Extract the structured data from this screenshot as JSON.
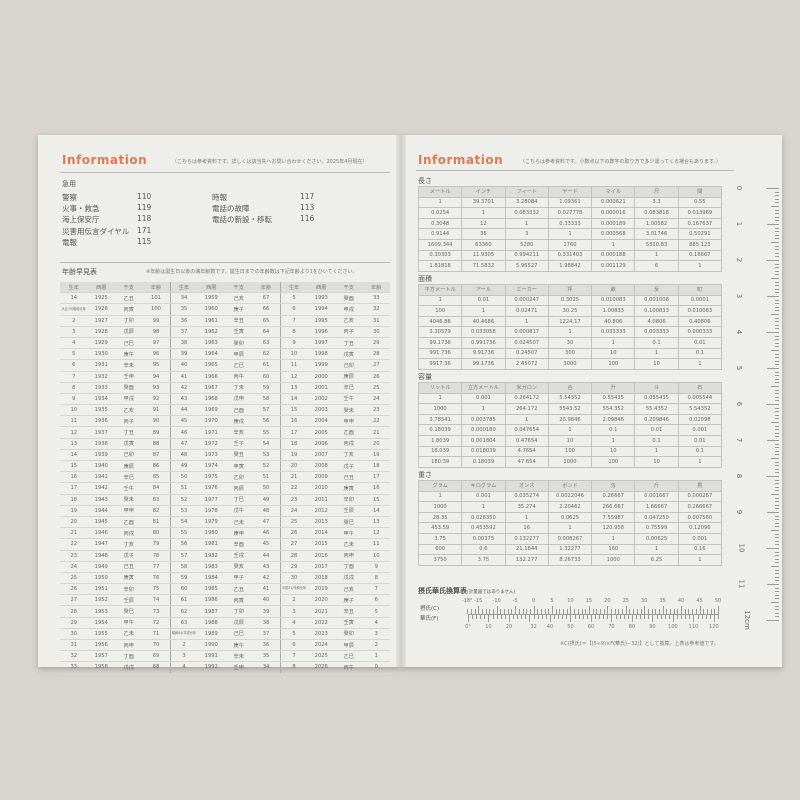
{
  "left_page": {
    "title": "Information",
    "note": "（こちらは参考資料です。詳しくは該当先へお問い合わせください。2025年4月現在）",
    "emergency": {
      "heading": "急用",
      "items": [
        {
          "label": "警察",
          "number": "110"
        },
        {
          "label": "火事・救急",
          "number": "119"
        },
        {
          "label": "海上保安庁",
          "number": "118"
        },
        {
          "label": "災害用伝言ダイヤル",
          "number": "171"
        },
        {
          "label": "電報",
          "number": "115"
        },
        {
          "label": "時報",
          "number": "117"
        },
        {
          "label": "電話の故障",
          "number": "113"
        },
        {
          "label": "電話の新設・移転",
          "number": "116"
        }
      ]
    },
    "age_table": {
      "heading": "年齢早見表",
      "note": "※年齢は誕生日以後の満年齢数です。誕生日までの年齢数は下記年齢より1をひいてください。",
      "headers": [
        "生年",
        "西暦",
        "干支",
        "年齢"
      ],
      "columns": [
        [
          [
            "14",
            "1925",
            "乙丑",
            "101"
          ],
          [
            "大正15/昭和元年",
            "1926",
            "丙寅",
            "100"
          ],
          [
            "2",
            "1927",
            "丁卯",
            "99"
          ],
          [
            "3",
            "1928",
            "戊辰",
            "98"
          ],
          [
            "4",
            "1929",
            "己巳",
            "97"
          ],
          [
            "5",
            "1930",
            "庚午",
            "96"
          ],
          [
            "6",
            "1931",
            "辛未",
            "95"
          ],
          [
            "7",
            "1932",
            "壬申",
            "94"
          ],
          [
            "8",
            "1933",
            "癸酉",
            "93"
          ],
          [
            "9",
            "1934",
            "甲戌",
            "92"
          ],
          [
            "10",
            "1935",
            "乙亥",
            "91"
          ],
          [
            "11",
            "1936",
            "丙子",
            "90"
          ],
          [
            "12",
            "1937",
            "丁丑",
            "89"
          ],
          [
            "13",
            "1938",
            "戊寅",
            "88"
          ],
          [
            "14",
            "1939",
            "己卯",
            "87"
          ],
          [
            "15",
            "1940",
            "庚辰",
            "86"
          ],
          [
            "16",
            "1941",
            "辛巳",
            "85"
          ],
          [
            "17",
            "1942",
            "壬午",
            "84"
          ],
          [
            "18",
            "1943",
            "癸未",
            "83"
          ],
          [
            "19",
            "1944",
            "甲申",
            "82"
          ],
          [
            "20",
            "1945",
            "乙酉",
            "81"
          ],
          [
            "21",
            "1946",
            "丙戌",
            "80"
          ],
          [
            "22",
            "1947",
            "丁亥",
            "79"
          ],
          [
            "23",
            "1948",
            "戊子",
            "78"
          ],
          [
            "24",
            "1949",
            "己丑",
            "77"
          ],
          [
            "25",
            "1950",
            "庚寅",
            "76"
          ],
          [
            "26",
            "1951",
            "辛卯",
            "75"
          ],
          [
            "27",
            "1952",
            "壬辰",
            "74"
          ],
          [
            "28",
            "1953",
            "癸巳",
            "73"
          ],
          [
            "29",
            "1954",
            "甲午",
            "72"
          ],
          [
            "30",
            "1955",
            "乙未",
            "71"
          ],
          [
            "31",
            "1956",
            "丙申",
            "70"
          ],
          [
            "32",
            "1957",
            "丁酉",
            "69"
          ],
          [
            "33",
            "1958",
            "戊戌",
            "68"
          ]
        ],
        [
          [
            "34",
            "1959",
            "己亥",
            "67"
          ],
          [
            "35",
            "1960",
            "庚子",
            "66"
          ],
          [
            "36",
            "1961",
            "辛丑",
            "65"
          ],
          [
            "37",
            "1962",
            "壬寅",
            "64"
          ],
          [
            "38",
            "1963",
            "癸卯",
            "63"
          ],
          [
            "39",
            "1964",
            "甲辰",
            "62"
          ],
          [
            "40",
            "1965",
            "乙巳",
            "61"
          ],
          [
            "41",
            "1966",
            "丙午",
            "60"
          ],
          [
            "42",
            "1967",
            "丁未",
            "59"
          ],
          [
            "43",
            "1968",
            "戊申",
            "58"
          ],
          [
            "44",
            "1969",
            "己酉",
            "57"
          ],
          [
            "45",
            "1970",
            "庚戌",
            "56"
          ],
          [
            "46",
            "1971",
            "辛亥",
            "55"
          ],
          [
            "47",
            "1972",
            "壬子",
            "54"
          ],
          [
            "48",
            "1973",
            "癸丑",
            "53"
          ],
          [
            "49",
            "1974",
            "甲寅",
            "52"
          ],
          [
            "50",
            "1975",
            "乙卯",
            "51"
          ],
          [
            "51",
            "1976",
            "丙辰",
            "50"
          ],
          [
            "52",
            "1977",
            "丁巳",
            "49"
          ],
          [
            "53",
            "1978",
            "戊午",
            "48"
          ],
          [
            "54",
            "1979",
            "己未",
            "47"
          ],
          [
            "55",
            "1980",
            "庚申",
            "46"
          ],
          [
            "56",
            "1981",
            "辛酉",
            "45"
          ],
          [
            "57",
            "1982",
            "壬戌",
            "44"
          ],
          [
            "58",
            "1983",
            "癸亥",
            "43"
          ],
          [
            "59",
            "1984",
            "甲子",
            "42"
          ],
          [
            "60",
            "1985",
            "乙丑",
            "41"
          ],
          [
            "61",
            "1986",
            "丙寅",
            "40"
          ],
          [
            "62",
            "1987",
            "丁卯",
            "39"
          ],
          [
            "63",
            "1988",
            "戊辰",
            "38"
          ],
          [
            "昭和64/平成元年",
            "1989",
            "己巳",
            "37"
          ],
          [
            "2",
            "1990",
            "庚午",
            "36"
          ],
          [
            "3",
            "1991",
            "辛未",
            "35"
          ],
          [
            "4",
            "1992",
            "壬申",
            "34"
          ]
        ],
        [
          [
            "5",
            "1993",
            "癸酉",
            "33"
          ],
          [
            "6",
            "1994",
            "甲戌",
            "32"
          ],
          [
            "7",
            "1995",
            "乙亥",
            "31"
          ],
          [
            "8",
            "1996",
            "丙子",
            "30"
          ],
          [
            "9",
            "1997",
            "丁丑",
            "29"
          ],
          [
            "10",
            "1998",
            "戊寅",
            "28"
          ],
          [
            "11",
            "1999",
            "己卯",
            "27"
          ],
          [
            "12",
            "2000",
            "庚辰",
            "26"
          ],
          [
            "13",
            "2001",
            "辛巳",
            "25"
          ],
          [
            "14",
            "2002",
            "壬午",
            "24"
          ],
          [
            "15",
            "2003",
            "癸未",
            "23"
          ],
          [
            "16",
            "2004",
            "甲申",
            "22"
          ],
          [
            "17",
            "2005",
            "乙酉",
            "21"
          ],
          [
            "18",
            "2006",
            "丙戌",
            "20"
          ],
          [
            "19",
            "2007",
            "丁亥",
            "19"
          ],
          [
            "20",
            "2008",
            "戊子",
            "18"
          ],
          [
            "21",
            "2009",
            "己丑",
            "17"
          ],
          [
            "22",
            "2010",
            "庚寅",
            "16"
          ],
          [
            "23",
            "2011",
            "辛卯",
            "15"
          ],
          [
            "24",
            "2012",
            "壬辰",
            "14"
          ],
          [
            "25",
            "2013",
            "癸巳",
            "13"
          ],
          [
            "26",
            "2014",
            "甲午",
            "12"
          ],
          [
            "27",
            "2015",
            "乙未",
            "11"
          ],
          [
            "28",
            "2016",
            "丙申",
            "10"
          ],
          [
            "29",
            "2017",
            "丁酉",
            "9"
          ],
          [
            "30",
            "2018",
            "戊戌",
            "8"
          ],
          [
            "平成31/令和元年",
            "2019",
            "己亥",
            "7"
          ],
          [
            "2",
            "2020",
            "庚子",
            "6"
          ],
          [
            "3",
            "2021",
            "辛丑",
            "5"
          ],
          [
            "4",
            "2022",
            "壬寅",
            "4"
          ],
          [
            "5",
            "2023",
            "癸卯",
            "3"
          ],
          [
            "6",
            "2024",
            "甲辰",
            "2"
          ],
          [
            "7",
            "2025",
            "乙巳",
            "1"
          ],
          [
            "8",
            "2026",
            "丙午",
            "0"
          ]
        ]
      ]
    }
  },
  "right_page": {
    "title": "Information",
    "note": "（こちらは参考資料です。小数点以下の数字の取り方で多少違ってくる場合もあります。）",
    "tables": [
      {
        "heading": "長さ",
        "headers": [
          "メートル",
          "インチ",
          "フィート",
          "ヤード",
          "マイル",
          "尺",
          "間"
        ],
        "rows": [
          [
            "1",
            "39.3701",
            "3.28084",
            "1.09361",
            "0.000621",
            "3.3",
            "0.55"
          ],
          [
            "0.0254",
            "1",
            "0.083332",
            "0.027778",
            "0.000016",
            "0.083818",
            "0.013969"
          ],
          [
            "0.3048",
            "12",
            "1",
            "0.33333",
            "0.000189",
            "1.00582",
            "0.167637"
          ],
          [
            "0.9144",
            "36",
            "3",
            "1",
            "0.000568",
            "3.01746",
            "0.50291"
          ],
          [
            "1609.344",
            "63360",
            "5280",
            "1760",
            "1",
            "5310.83",
            "885.123"
          ],
          [
            "0.30303",
            "11.9305",
            "0.994211",
            "0.331403",
            "0.000188",
            "1",
            "0.16667"
          ],
          [
            "1.81818",
            "71.5832",
            "5.96527",
            "1.98842",
            "0.001129",
            "6",
            "1"
          ]
        ]
      },
      {
        "heading": "面積",
        "headers": [
          "平方メートル",
          "アール",
          "エーカー",
          "坪",
          "畝",
          "反",
          "町"
        ],
        "rows": [
          [
            "1",
            "0.01",
            "0.000247",
            "0.3025",
            "0.010083",
            "0.001008",
            "0.0001"
          ],
          [
            "100",
            "1",
            "0.02471",
            "30.25",
            "1.00833",
            "0.100833",
            "0.010083"
          ],
          [
            "4046.86",
            "40.4686",
            "1",
            "1224.17",
            "40.806",
            "4.0806",
            "0.40806"
          ],
          [
            "3.30579",
            "0.033058",
            "0.000817",
            "1",
            "0.033333",
            "0.003333",
            "0.000333"
          ],
          [
            "99.1736",
            "0.991736",
            "0.024507",
            "30",
            "1",
            "0.1",
            "0.01"
          ],
          [
            "991.736",
            "9.91736",
            "0.24507",
            "300",
            "10",
            "1",
            "0.1"
          ],
          [
            "9917.36",
            "99.1736",
            "2.45072",
            "3000",
            "100",
            "10",
            "1"
          ]
        ]
      },
      {
        "heading": "容量",
        "headers": [
          "リットル",
          "立方メートル",
          "米ガロン",
          "合",
          "升",
          "斗",
          "石"
        ],
        "rows": [
          [
            "1",
            "0.001",
            "0.264172",
            "5.54352",
            "0.55435",
            "0.055435",
            "0.005544"
          ],
          [
            "1000",
            "1",
            "264.172",
            "5543.52",
            "554.352",
            "55.4352",
            "5.54352"
          ],
          [
            "3.78541",
            "0.003785",
            "1",
            "20.9846",
            "2.09846",
            "0.209846",
            "0.02098"
          ],
          [
            "0.18039",
            "0.000180",
            "0.047654",
            "1",
            "0.1",
            "0.01",
            "0.001"
          ],
          [
            "1.8039",
            "0.001804",
            "0.47654",
            "10",
            "1",
            "0.1",
            "0.01"
          ],
          [
            "18.039",
            "0.018039",
            "4.7654",
            "100",
            "10",
            "1",
            "0.1"
          ],
          [
            "180.39",
            "0.18039",
            "47.654",
            "1000",
            "100",
            "10",
            "1"
          ]
        ]
      },
      {
        "heading": "重さ",
        "headers": [
          "グラム",
          "キログラム",
          "オンス",
          "ポンド",
          "匁",
          "斤",
          "貫"
        ],
        "rows": [
          [
            "1",
            "0.001",
            "0.035274",
            "0.0022046",
            "0.26667",
            "0.001667",
            "0.000267"
          ],
          [
            "1000",
            "1",
            "35.274",
            "2.20462",
            "266.667",
            "1.66667",
            "0.266667"
          ],
          [
            "28.35",
            "0.028350",
            "1",
            "0.0625",
            "7.55987",
            "0.047250",
            "0.007560"
          ],
          [
            "453.59",
            "0.453592",
            "16",
            "1",
            "120.958",
            "0.75599",
            "0.12096"
          ],
          [
            "3.75",
            "0.00375",
            "0.132277",
            "0.008267",
            "1",
            "0.00625",
            "0.001"
          ],
          [
            "600",
            "0.6",
            "21.1644",
            "1.32277",
            "160",
            "1",
            "0.16"
          ],
          [
            "3750",
            "3.75",
            "132.277",
            "8.26733",
            "1000",
            "6.25",
            "1"
          ]
        ]
      }
    ],
    "temperature": {
      "heading": "摂氏華氏換算表",
      "subnote": "(計量器ではありません)",
      "celsius_label": "摂氏(C)",
      "fahrenheit_label": "華氏(F)",
      "celsius_ticks": [
        "-18°",
        "-15",
        "-10",
        "-5",
        "0",
        "5",
        "10",
        "15",
        "20",
        "25",
        "30",
        "35",
        "40",
        "45",
        "50"
      ],
      "fahrenheit_ticks": [
        "0°",
        "10",
        "20",
        "32",
        "40",
        "50",
        "60",
        "70",
        "80",
        "90",
        "100",
        "110",
        "120"
      ],
      "footnote": "※C(摂氏)＝【(5÷9)×F(華氏)−32)】として換算。上表は参考値です。"
    },
    "ruler": {
      "labels": [
        "0",
        "1",
        "2",
        "3",
        "4",
        "5",
        "6",
        "7",
        "8",
        "9",
        "10",
        "11",
        "12cm"
      ]
    }
  },
  "colors": {
    "accent": "#e07a54",
    "page": "#eeeeeb",
    "background": "#d8d5cf"
  }
}
